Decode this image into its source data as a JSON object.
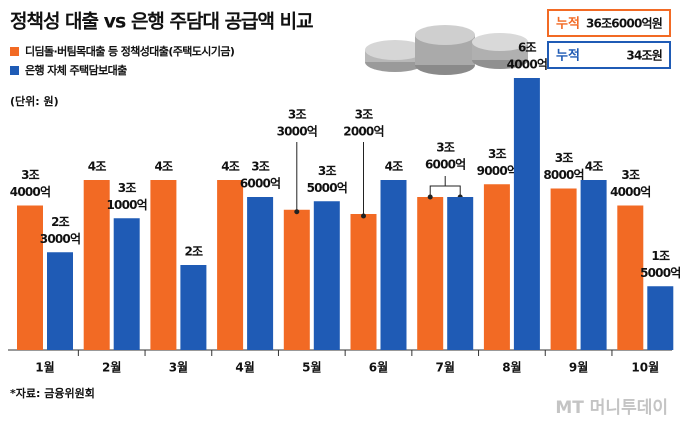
{
  "chart_data": {
    "type": "bar",
    "title": "정책성 대출 vs 은행 주담대 공급액 비교",
    "unit_note": "(단위: 원)",
    "source": "*자료: 금융위원회",
    "watermark": "MT 머니투데이",
    "categories": [
      "1월",
      "2월",
      "3월",
      "4월",
      "5월",
      "6월",
      "7월",
      "8월",
      "9월",
      "10월"
    ],
    "series": [
      {
        "name": "디딤돌·버팀목대출 등 정책성대출(주택도시기금)",
        "color": "#f26a24",
        "values": [
          34000,
          40000,
          40000,
          40000,
          33000,
          32000,
          36000,
          39000,
          38000,
          34000
        ],
        "value_labels": [
          [
            "3조",
            "4000억"
          ],
          [
            "4조"
          ],
          [
            "4조"
          ],
          [
            "4조"
          ],
          [
            "3조",
            "3000억"
          ],
          [
            "3조",
            "2000억"
          ],
          [
            "3조",
            "6000억"
          ],
          [
            "3조",
            "9000억"
          ],
          [
            "3조",
            "8000억"
          ],
          [
            "3조",
            "4000억"
          ]
        ],
        "total": {
          "label": "누적",
          "value": "36조6000억원"
        }
      },
      {
        "name": "은행 자체 주택담보대출",
        "color": "#1f5bb5",
        "values": [
          23000,
          31000,
          20000,
          36000,
          35000,
          40000,
          36000,
          64000,
          40000,
          15000
        ],
        "value_labels": [
          [
            "2조",
            "3000억"
          ],
          [
            "3조",
            "1000억"
          ],
          [
            "2조"
          ],
          [
            "3조",
            "6000억"
          ],
          [
            "3조",
            "5000억"
          ],
          [
            "4조"
          ],
          null,
          [
            "6조",
            "4000억"
          ],
          [
            "4조"
          ],
          [
            "1조",
            "5000억"
          ]
        ],
        "total": {
          "label": "누적",
          "value": "34조원"
        }
      }
    ]
  }
}
